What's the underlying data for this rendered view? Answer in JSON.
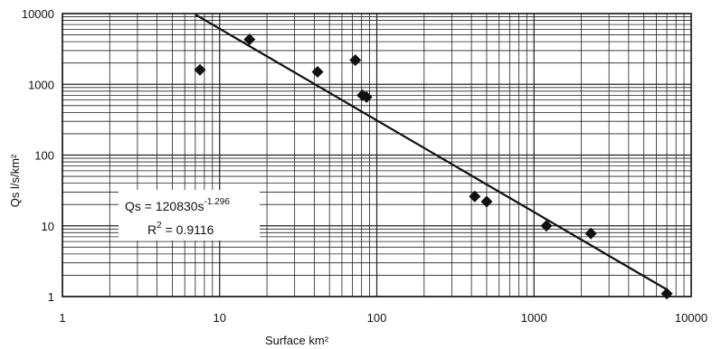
{
  "chart_data": {
    "type": "scatter",
    "xlabel": "Surface km²",
    "ylabel": "Qs l/s/km²",
    "x_scale": "log",
    "y_scale": "log",
    "xlim": [
      1,
      10000
    ],
    "ylim": [
      1,
      10000
    ],
    "grid": true,
    "x_ticks": [
      "1",
      "10",
      "100",
      "1000",
      "10000"
    ],
    "y_ticks": [
      "1",
      "10",
      "100",
      "1000",
      "10000"
    ],
    "points": [
      {
        "x": 7.5,
        "y": 1600
      },
      {
        "x": 15.5,
        "y": 4300
      },
      {
        "x": 42,
        "y": 1500
      },
      {
        "x": 73,
        "y": 2200
      },
      {
        "x": 81,
        "y": 700
      },
      {
        "x": 86,
        "y": 660
      },
      {
        "x": 420,
        "y": 26
      },
      {
        "x": 500,
        "y": 22
      },
      {
        "x": 1200,
        "y": 10
      },
      {
        "x": 2300,
        "y": 7.8
      },
      {
        "x": 7000,
        "y": 1.1
      }
    ],
    "fit": {
      "type": "power",
      "coefficient": 120830,
      "exponent": -1.296,
      "x_range": [
        7,
        7000
      ],
      "equation_base": "Qs = 120830s",
      "equation_exponent": "-1.296",
      "r_squared_label": "R",
      "r_squared_sup": "2",
      "r_squared_value": " = 0.9116"
    },
    "colors": {
      "marker": "#111111",
      "line": "#111111",
      "grid": "#222222",
      "background": "#ffffff"
    }
  }
}
